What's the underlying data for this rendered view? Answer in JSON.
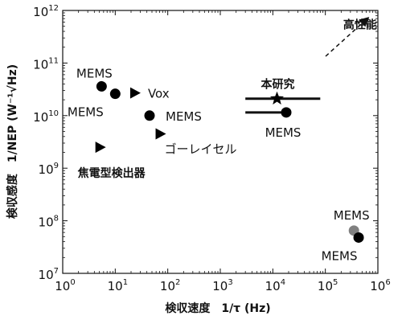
{
  "chart_data": {
    "type": "scatter",
    "x_axis": {
      "scale": "log",
      "range": [
        1,
        1000000
      ],
      "ticks": [
        {
          "value": 1,
          "base": "10",
          "exp": "0"
        },
        {
          "value": 10,
          "base": "10",
          "exp": "1"
        },
        {
          "value": 100,
          "base": "10",
          "exp": "2"
        },
        {
          "value": 1000,
          "base": "10",
          "exp": "3"
        },
        {
          "value": 10000,
          "base": "10",
          "exp": "4"
        },
        {
          "value": 100000,
          "base": "10",
          "exp": "5"
        },
        {
          "value": 1000000,
          "base": "10",
          "exp": "6"
        }
      ],
      "label": "検収速度　1/τ (Hz)"
    },
    "y_axis": {
      "scale": "log",
      "range": [
        10000000,
        1000000000000
      ],
      "ticks": [
        {
          "value": 10000000,
          "base": "10",
          "exp": "7"
        },
        {
          "value": 100000000,
          "base": "10",
          "exp": "8"
        },
        {
          "value": 1000000000,
          "base": "10",
          "exp": "9"
        },
        {
          "value": 10000000000,
          "base": "10",
          "exp": "10"
        },
        {
          "value": 100000000000,
          "base": "10",
          "exp": "11"
        },
        {
          "value": 1000000000000,
          "base": "10",
          "exp": "12"
        }
      ],
      "label": "検収感度　1/NEP (W⁻¹√Hz)"
    },
    "grid": false,
    "points": [
      {
        "x": 5.5,
        "y": 36000000000,
        "marker": "circle",
        "color": "#000000"
      },
      {
        "x": 10,
        "y": 26000000000,
        "marker": "circle",
        "color": "#000000"
      },
      {
        "x": 45,
        "y": 10000000000,
        "marker": "circle",
        "color": "#000000"
      },
      {
        "x": 18000,
        "y": 11500000000,
        "marker": "circle",
        "color": "#000000",
        "xerr": [
          3000,
          18000
        ]
      },
      {
        "x": 350000,
        "y": 65000000,
        "marker": "circle",
        "color": "#808080"
      },
      {
        "x": 430000,
        "y": 48000000,
        "marker": "circle",
        "color": "#000000"
      },
      {
        "x": 23,
        "y": 27000000000,
        "marker": "triangle-right",
        "color": "#000000"
      },
      {
        "x": 70,
        "y": 4500000000,
        "marker": "triangle-right",
        "color": "#000000"
      },
      {
        "x": 5,
        "y": 2500000000,
        "marker": "triangle-right",
        "color": "#000000"
      },
      {
        "x": 12000,
        "y": 21000000000,
        "marker": "star",
        "color": "#000000",
        "xerr": [
          3000,
          80000
        ]
      }
    ],
    "labels": [
      {
        "text": "MEMS",
        "x": 5.5,
        "y": 36000000000
      },
      {
        "text": "MEMS",
        "x": 10,
        "y": 26000000000
      },
      {
        "text": "Vox",
        "x": 23,
        "y": 27000000000
      },
      {
        "text": "MEMS",
        "x": 45,
        "y": 10000000000
      },
      {
        "text": "ゴーレイセル",
        "x": 70,
        "y": 4500000000
      },
      {
        "text": "焦電型検出器",
        "x": 5,
        "y": 2500000000
      },
      {
        "text": "本研究",
        "x": 12000,
        "y": 21000000000
      },
      {
        "text": "MEMS",
        "x": 18000,
        "y": 11500000000
      },
      {
        "text": "MEMS",
        "x": 350000,
        "y": 65000000
      },
      {
        "text": "MEMS",
        "x": 430000,
        "y": 48000000
      },
      {
        "text": "高性能",
        "x": 300000,
        "y": 500000000000
      }
    ]
  }
}
